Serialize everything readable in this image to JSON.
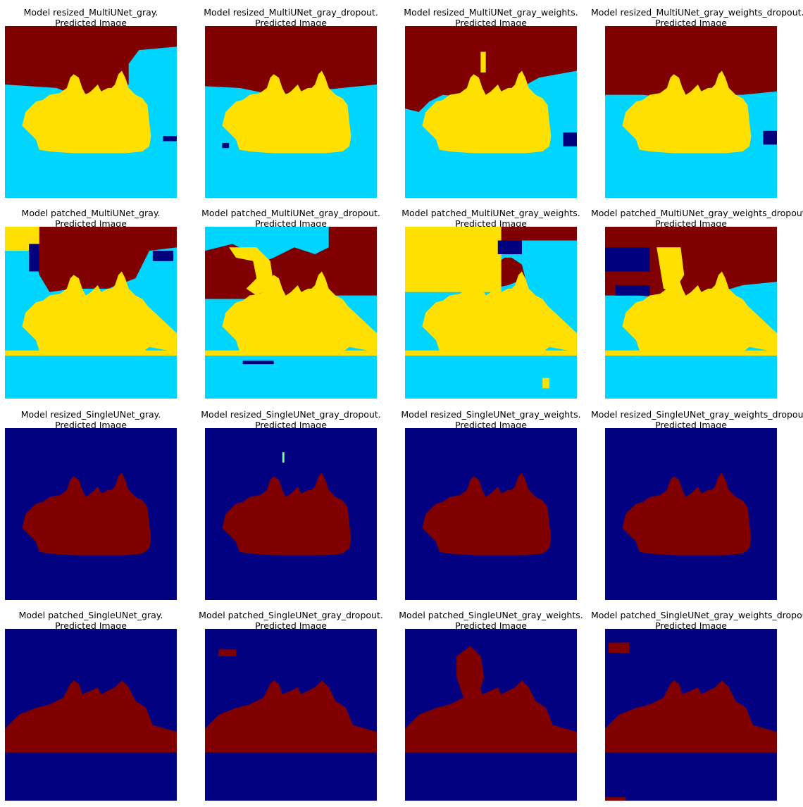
{
  "colors": {
    "bg_water": "#00d5ff",
    "sky": "#800000",
    "land": "#ffe000",
    "dark": "#00007f",
    "single_bg": "#000080",
    "single_fg": "#800000"
  },
  "panels": [
    {
      "title": "Model resized_MultiUNet_gray.",
      "subtitle": "Predicted Image",
      "mode": "multi_resized",
      "variant": 0
    },
    {
      "title": "Model resized_MultiUNet_gray_dropout.",
      "subtitle": "Predicted Image",
      "mode": "multi_resized",
      "variant": 1
    },
    {
      "title": "Model resized_MultiUNet_gray_weights.",
      "subtitle": "Predicted Image",
      "mode": "multi_resized",
      "variant": 2
    },
    {
      "title": "Model resized_MultiUNet_gray_weights_dropout.",
      "subtitle": "Predicted Image",
      "mode": "multi_resized",
      "variant": 3
    },
    {
      "title": "Model patched_MultiUNet_gray.",
      "subtitle": "Predicted Image",
      "mode": "multi_patched",
      "variant": 0
    },
    {
      "title": "Model patched_MultiUNet_gray_dropout.",
      "subtitle": "Predicted Image",
      "mode": "multi_patched",
      "variant": 1
    },
    {
      "title": "Model patched_MultiUNet_gray_weights.",
      "subtitle": "Predicted Image",
      "mode": "multi_patched",
      "variant": 2
    },
    {
      "title": "Model patched_MultiUNet_gray_weights_dropout.",
      "subtitle": "Predicted Image",
      "mode": "multi_patched",
      "variant": 3
    },
    {
      "title": "Model resized_SingleUNet_gray.",
      "subtitle": "Predicted Image",
      "mode": "single_resized",
      "variant": 0
    },
    {
      "title": "Model resized_SingleUNet_gray_dropout.",
      "subtitle": "Predicted Image",
      "mode": "single_resized",
      "variant": 1
    },
    {
      "title": "Model resized_SingleUNet_gray_weights.",
      "subtitle": "Predicted Image",
      "mode": "single_resized",
      "variant": 2
    },
    {
      "title": "Model resized_SingleUNet_gray_weights_dropout.",
      "subtitle": "Predicted Image",
      "mode": "single_resized",
      "variant": 3
    },
    {
      "title": "Model patched_SingleUNet_gray.",
      "subtitle": "Predicted Image",
      "mode": "single_patched",
      "variant": 0
    },
    {
      "title": "Model patched_SingleUNet_gray_dropout.",
      "subtitle": "Predicted Image",
      "mode": "single_patched",
      "variant": 1
    },
    {
      "title": "Model patched_SingleUNet_gray_weights.",
      "subtitle": "Predicted Image",
      "mode": "single_patched",
      "variant": 2
    },
    {
      "title": "Model patched_SingleUNet_gray_weights_dropout.",
      "subtitle": "Predicted Image",
      "mode": "single_patched",
      "variant": 3
    }
  ]
}
